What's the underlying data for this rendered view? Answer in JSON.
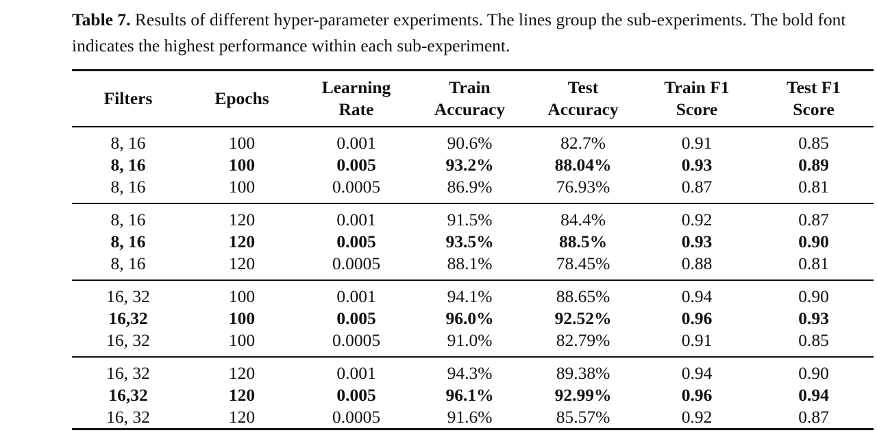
{
  "caption": {
    "label": "Table 7.",
    "text": "Results of different hyper-parameter experiments. The lines group the sub-experiments. The bold font indicates the highest performance within each sub-experiment."
  },
  "table": {
    "headers": [
      [
        "Filters"
      ],
      [
        "Epochs"
      ],
      [
        "Learning",
        "Rate"
      ],
      [
        "Train",
        "Accuracy"
      ],
      [
        "Test",
        "Accuracy"
      ],
      [
        "Train F1",
        "Score"
      ],
      [
        "Test F1",
        "Score"
      ]
    ],
    "groups": [
      {
        "rows": [
          {
            "bold": false,
            "cells": [
              "8, 16",
              "100",
              "0.001",
              "90.6%",
              "82.7%",
              "0.91",
              "0.85"
            ]
          },
          {
            "bold": true,
            "cells": [
              "8, 16",
              "100",
              "0.005",
              "93.2%",
              "88.04%",
              "0.93",
              "0.89"
            ]
          },
          {
            "bold": false,
            "cells": [
              "8, 16",
              "100",
              "0.0005",
              "86.9%",
              "76.93%",
              "0.87",
              "0.81"
            ]
          }
        ]
      },
      {
        "rows": [
          {
            "bold": false,
            "cells": [
              "8, 16",
              "120",
              "0.001",
              "91.5%",
              "84.4%",
              "0.92",
              "0.87"
            ]
          },
          {
            "bold": true,
            "cells": [
              "8, 16",
              "120",
              "0.005",
              "93.5%",
              "88.5%",
              "0.93",
              "0.90"
            ]
          },
          {
            "bold": false,
            "cells": [
              "8, 16",
              "120",
              "0.0005",
              "88.1%",
              "78.45%",
              "0.88",
              "0.81"
            ]
          }
        ]
      },
      {
        "rows": [
          {
            "bold": false,
            "cells": [
              "16, 32",
              "100",
              "0.001",
              "94.1%",
              "88.65%",
              "0.94",
              "0.90"
            ]
          },
          {
            "bold": true,
            "cells": [
              "16,32",
              "100",
              "0.005",
              "96.0%",
              "92.52%",
              "0.96",
              "0.93"
            ]
          },
          {
            "bold": false,
            "cells": [
              "16, 32",
              "100",
              "0.0005",
              "91.0%",
              "82.79%",
              "0.91",
              "0.85"
            ]
          }
        ]
      },
      {
        "rows": [
          {
            "bold": false,
            "cells": [
              "16, 32",
              "120",
              "0.001",
              "94.3%",
              "89.38%",
              "0.94",
              "0.90"
            ]
          },
          {
            "bold": true,
            "cells": [
              "16,32",
              "120",
              "0.005",
              "96.1%",
              "92.99%",
              "0.96",
              "0.94"
            ]
          },
          {
            "bold": false,
            "cells": [
              "16, 32",
              "120",
              "0.0005",
              "91.6%",
              "85.57%",
              "0.92",
              "0.87"
            ]
          }
        ]
      }
    ]
  }
}
